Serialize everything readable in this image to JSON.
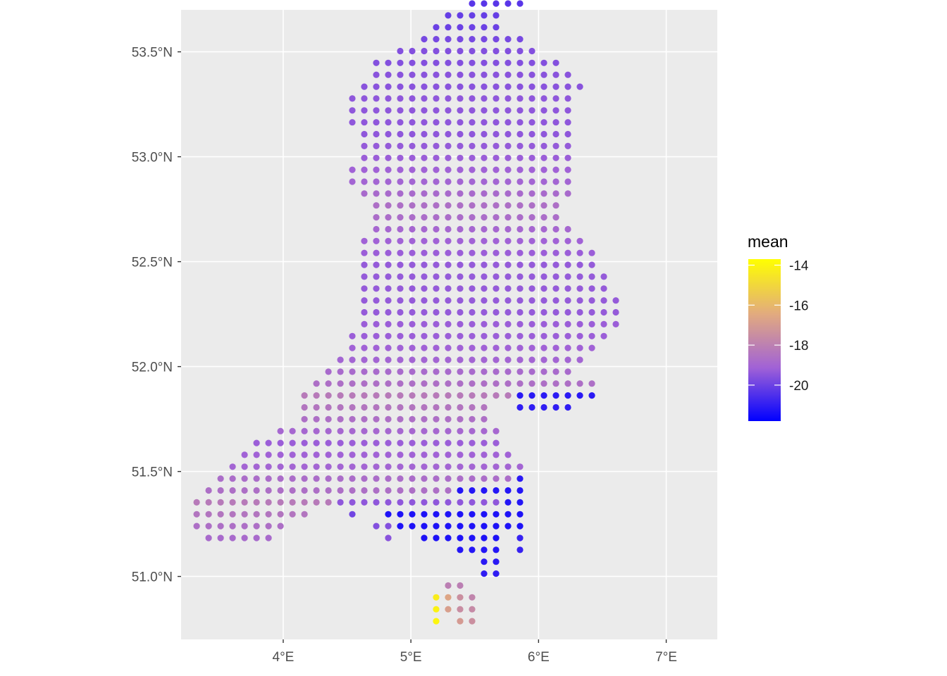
{
  "chart_data": {
    "type": "scatter",
    "title": "",
    "xlabel": "",
    "ylabel": "",
    "xlim": [
      3.2,
      7.4
    ],
    "ylim": [
      50.7,
      53.7
    ],
    "x_ticks": [
      {
        "value": 4,
        "label": "4°E"
      },
      {
        "value": 5,
        "label": "5°E"
      },
      {
        "value": 6,
        "label": "6°E"
      },
      {
        "value": 7,
        "label": "7°E"
      }
    ],
    "y_ticks": [
      {
        "value": 51.0,
        "label": "51.0°N"
      },
      {
        "value": 51.5,
        "label": "51.5°N"
      },
      {
        "value": 52.0,
        "label": "52.0°N"
      },
      {
        "value": 52.5,
        "label": "52.5°N"
      },
      {
        "value": 53.0,
        "label": "53.0°N"
      },
      {
        "value": 53.5,
        "label": "53.5°N"
      }
    ],
    "grid": true,
    "legend": {
      "title": "mean",
      "placement": "right",
      "range": [
        -21.8,
        -13.7
      ],
      "ticks": [
        {
          "value": -14,
          "label": "-14"
        },
        {
          "value": -16,
          "label": "-16"
        },
        {
          "value": -18,
          "label": "-18"
        },
        {
          "value": -20,
          "label": "-20"
        }
      ],
      "colors": [
        "#0000ff",
        "#a162d6",
        "#e2aa7f",
        "#ffff00"
      ]
    },
    "grid_step": {
      "lon": 0.0938,
      "lat": 0.0566
    },
    "grid_origin": {
      "lon": 3.322,
      "lat": 50.787
    },
    "rows": [
      {
        "row": 0,
        "cols": [
          [
            20,
            20,
            -14.0
          ],
          [
            22,
            22,
            -17.0
          ],
          [
            23,
            23,
            -17.4
          ]
        ]
      },
      {
        "row": 1,
        "cols": [
          [
            20,
            20,
            -14.1
          ],
          [
            21,
            21,
            -16.8
          ],
          [
            22,
            22,
            -17.5
          ],
          [
            23,
            23,
            -17.6
          ]
        ]
      },
      {
        "row": 2,
        "cols": [
          [
            20,
            20,
            -14.3
          ],
          [
            21,
            21,
            -16.6
          ],
          [
            22,
            22,
            -17.4
          ],
          [
            23,
            23,
            -17.8
          ]
        ]
      },
      {
        "row": 3,
        "cols": [
          [
            21,
            22,
            -18.0
          ]
        ]
      },
      {
        "row": 4,
        "cols": [
          [
            24,
            25,
            -21.0
          ]
        ]
      },
      {
        "row": 5,
        "cols": [
          [
            24,
            25,
            -21.1
          ]
        ]
      },
      {
        "row": 6,
        "cols": [
          [
            22,
            25,
            -21.2
          ],
          [
            27,
            27,
            -20.9
          ]
        ]
      },
      {
        "row": 7,
        "cols": [
          [
            1,
            6,
            -18.8
          ],
          [
            16,
            16,
            -19.5
          ],
          [
            19,
            25,
            -21.3
          ],
          [
            27,
            27,
            -20.9
          ]
        ]
      },
      {
        "row": 8,
        "cols": [
          [
            0,
            7,
            -18.6
          ],
          [
            15,
            16,
            -19.6
          ],
          [
            17,
            27,
            -21.3
          ]
        ]
      },
      {
        "row": 9,
        "cols": [
          [
            0,
            9,
            -18.4
          ],
          [
            13,
            13,
            -19.9
          ],
          [
            16,
            27,
            -21.3
          ]
        ]
      },
      {
        "row": 10,
        "cols": [
          [
            0,
            11,
            -18.2
          ],
          [
            12,
            25,
            -19.4
          ],
          [
            26,
            27,
            -21.2
          ]
        ]
      },
      {
        "row": 11,
        "cols": [
          [
            1,
            21,
            -18.6
          ],
          [
            22,
            27,
            -21.2
          ]
        ]
      },
      {
        "row": 12,
        "cols": [
          [
            2,
            26,
            -18.7
          ],
          [
            27,
            27,
            -21.1
          ]
        ]
      },
      {
        "row": 13,
        "cols": [
          [
            3,
            27,
            -19.0
          ]
        ]
      },
      {
        "row": 14,
        "cols": [
          [
            4,
            26,
            -19.1
          ]
        ]
      },
      {
        "row": 15,
        "cols": [
          [
            5,
            25,
            -19.2
          ]
        ]
      },
      {
        "row": 16,
        "cols": [
          [
            7,
            25,
            -18.9
          ]
        ]
      },
      {
        "row": 17,
        "cols": [
          [
            9,
            24,
            -18.6
          ]
        ]
      },
      {
        "row": 18,
        "cols": [
          [
            9,
            24,
            -18.4
          ],
          [
            27,
            31,
            -21.0
          ]
        ]
      },
      {
        "row": 19,
        "cols": [
          [
            9,
            26,
            -18.2
          ],
          [
            27,
            33,
            -21.1
          ]
        ]
      },
      {
        "row": 20,
        "cols": [
          [
            10,
            33,
            -18.6
          ]
        ]
      },
      {
        "row": 21,
        "cols": [
          [
            11,
            31,
            -18.8
          ]
        ]
      },
      {
        "row": 22,
        "cols": [
          [
            12,
            32,
            -19.0
          ]
        ]
      },
      {
        "row": 23,
        "cols": [
          [
            13,
            33,
            -19.1
          ]
        ]
      },
      {
        "row": 24,
        "cols": [
          [
            13,
            34,
            -19.2
          ]
        ]
      },
      {
        "row": 25,
        "cols": [
          [
            14,
            35,
            -19.2
          ]
        ]
      },
      {
        "row": 26,
        "cols": [
          [
            14,
            35,
            -19.3
          ]
        ]
      },
      {
        "row": 27,
        "cols": [
          [
            14,
            35,
            -19.3
          ]
        ]
      },
      {
        "row": 28,
        "cols": [
          [
            14,
            34,
            -19.3
          ]
        ]
      },
      {
        "row": 29,
        "cols": [
          [
            14,
            34,
            -19.3
          ]
        ]
      },
      {
        "row": 30,
        "cols": [
          [
            14,
            33,
            -19.3
          ]
        ]
      },
      {
        "row": 31,
        "cols": [
          [
            14,
            33,
            -19.2
          ]
        ]
      },
      {
        "row": 32,
        "cols": [
          [
            14,
            32,
            -19.1
          ]
        ]
      },
      {
        "row": 33,
        "cols": [
          [
            15,
            31,
            -18.9
          ]
        ]
      },
      {
        "row": 34,
        "cols": [
          [
            15,
            30,
            -18.7
          ]
        ]
      },
      {
        "row": 35,
        "cols": [
          [
            15,
            30,
            -18.6
          ]
        ]
      },
      {
        "row": 36,
        "cols": [
          [
            14,
            31,
            -18.8
          ]
        ]
      },
      {
        "row": 37,
        "cols": [
          [
            13,
            31,
            -19.0
          ]
        ]
      },
      {
        "row": 38,
        "cols": [
          [
            13,
            31,
            -19.1
          ]
        ]
      },
      {
        "row": 39,
        "cols": [
          [
            14,
            31,
            -19.2
          ]
        ]
      },
      {
        "row": 40,
        "cols": [
          [
            14,
            31,
            -19.3
          ]
        ]
      },
      {
        "row": 41,
        "cols": [
          [
            14,
            31,
            -19.4
          ]
        ]
      },
      {
        "row": 42,
        "cols": [
          [
            13,
            31,
            -19.4
          ]
        ]
      },
      {
        "row": 43,
        "cols": [
          [
            13,
            31,
            -19.4
          ]
        ]
      },
      {
        "row": 44,
        "cols": [
          [
            13,
            31,
            -19.4
          ]
        ]
      },
      {
        "row": 45,
        "cols": [
          [
            14,
            32,
            -19.5
          ]
        ]
      },
      {
        "row": 46,
        "cols": [
          [
            15,
            31,
            -19.5
          ]
        ]
      },
      {
        "row": 47,
        "cols": [
          [
            15,
            30,
            -19.6
          ]
        ]
      },
      {
        "row": 48,
        "cols": [
          [
            17,
            28,
            -19.6
          ]
        ]
      },
      {
        "row": 49,
        "cols": [
          [
            19,
            27,
            -19.8
          ]
        ]
      },
      {
        "row": 50,
        "cols": [
          [
            20,
            25,
            -20.0
          ]
        ]
      },
      {
        "row": 51,
        "cols": [
          [
            21,
            25,
            -20.1
          ]
        ]
      },
      {
        "row": 52,
        "cols": [
          [
            23,
            27,
            -20.3
          ]
        ]
      },
      {
        "row": 53,
        "cols": [
          [
            25,
            26,
            -20.6
          ]
        ]
      },
      {
        "row": 54,
        "cols": [
          [
            23,
            24,
            -20.8
          ]
        ]
      },
      {
        "row": 55,
        "cols": [
          [
            21,
            25,
            -21.0
          ]
        ]
      },
      {
        "row": 56,
        "cols": [
          [
            21,
            25,
            -21.1
          ]
        ]
      },
      {
        "row": 57,
        "cols": [
          [
            20,
            22,
            -21.2
          ]
        ]
      },
      {
        "row": 58,
        "cols": [
          [
            20,
            22,
            -21.2
          ]
        ]
      }
    ]
  }
}
